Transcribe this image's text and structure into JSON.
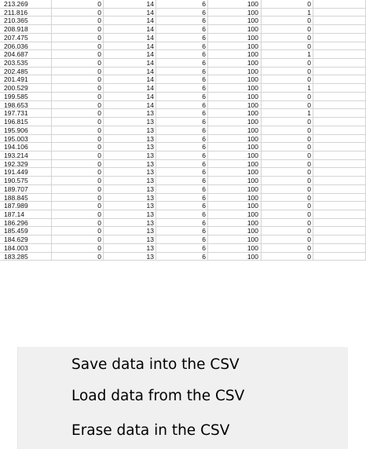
{
  "spreadsheet": {
    "rows": [
      [
        "213.269",
        "0",
        "14",
        "6",
        "100",
        "0"
      ],
      [
        "211.816",
        "0",
        "14",
        "6",
        "100",
        "1"
      ],
      [
        "210.365",
        "0",
        "14",
        "6",
        "100",
        "0"
      ],
      [
        "208.918",
        "0",
        "14",
        "6",
        "100",
        "0"
      ],
      [
        "207.475",
        "0",
        "14",
        "6",
        "100",
        "0"
      ],
      [
        "206.036",
        "0",
        "14",
        "6",
        "100",
        "0"
      ],
      [
        "204.687",
        "0",
        "14",
        "6",
        "100",
        "1"
      ],
      [
        "203.535",
        "0",
        "14",
        "6",
        "100",
        "0"
      ],
      [
        "202.485",
        "0",
        "14",
        "6",
        "100",
        "0"
      ],
      [
        "201.491",
        "0",
        "14",
        "6",
        "100",
        "0"
      ],
      [
        "200.529",
        "0",
        "14",
        "6",
        "100",
        "1"
      ],
      [
        "199.585",
        "0",
        "14",
        "6",
        "100",
        "0"
      ],
      [
        "198.653",
        "0",
        "14",
        "6",
        "100",
        "0"
      ],
      [
        "197.731",
        "0",
        "13",
        "6",
        "100",
        "1"
      ],
      [
        "196.815",
        "0",
        "13",
        "6",
        "100",
        "0"
      ],
      [
        "195.906",
        "0",
        "13",
        "6",
        "100",
        "0"
      ],
      [
        "195.003",
        "0",
        "13",
        "6",
        "100",
        "0"
      ],
      [
        "194.106",
        "0",
        "13",
        "6",
        "100",
        "0"
      ],
      [
        "193.214",
        "0",
        "13",
        "6",
        "100",
        "0"
      ],
      [
        "192.329",
        "0",
        "13",
        "6",
        "100",
        "0"
      ],
      [
        "191.449",
        "0",
        "13",
        "6",
        "100",
        "0"
      ],
      [
        "190.575",
        "0",
        "13",
        "6",
        "100",
        "0"
      ],
      [
        "189.707",
        "0",
        "13",
        "6",
        "100",
        "0"
      ],
      [
        "188.845",
        "0",
        "13",
        "6",
        "100",
        "0"
      ],
      [
        "187.989",
        "0",
        "13",
        "6",
        "100",
        "0"
      ],
      [
        "187.14",
        "0",
        "13",
        "6",
        "100",
        "0"
      ],
      [
        "186.296",
        "0",
        "13",
        "6",
        "100",
        "0"
      ],
      [
        "185.459",
        "0",
        "13",
        "6",
        "100",
        "0"
      ],
      [
        "184.629",
        "0",
        "13",
        "6",
        "100",
        "0"
      ],
      [
        "184.003",
        "0",
        "13",
        "6",
        "100",
        "0"
      ],
      [
        "183.285",
        "0",
        "13",
        "6",
        "100",
        "0"
      ]
    ]
  },
  "menu": {
    "items": [
      {
        "label": "Save data into the CSV"
      },
      {
        "label": "Load data from the CSV"
      },
      {
        "label": "Erase data in the CSV"
      }
    ]
  }
}
